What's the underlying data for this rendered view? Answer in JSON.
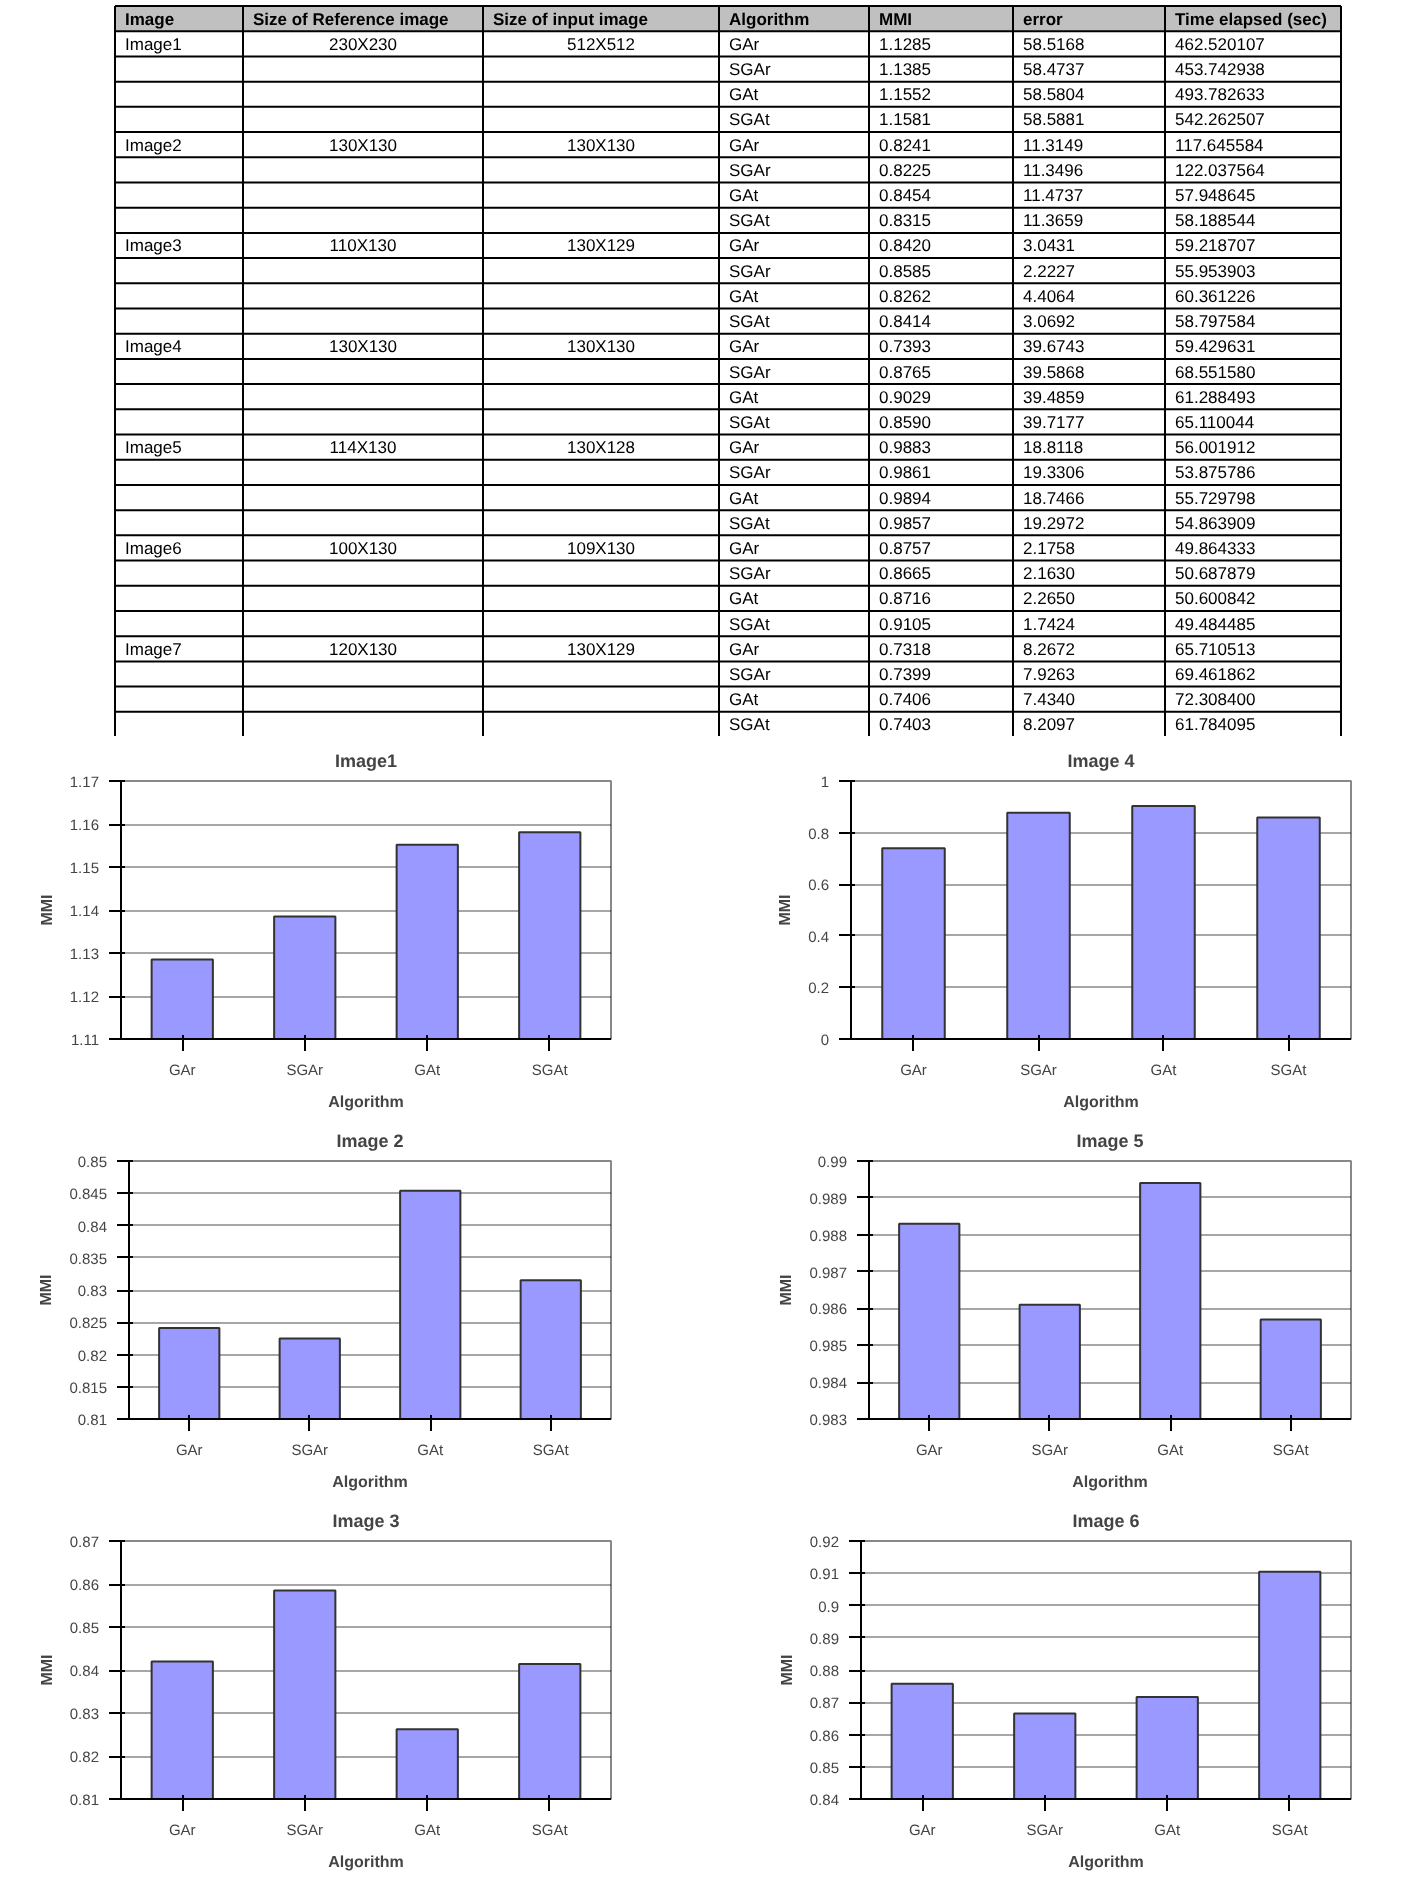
{
  "chart_data": [
    {
      "type": "other",
      "categories": [
        "Image",
        "Size of Reference image",
        "Size of input image",
        "Algorithm",
        "MMI",
        "error",
        "Time elapsed (sec)"
      ],
      "cell_labels": [
        [
          "Image1",
          "230X230",
          "512X512",
          "GAr",
          "1.1285",
          "58.5168",
          "462.520107"
        ],
        [
          null,
          null,
          null,
          "SGAr",
          "1.1385",
          "58.4737",
          "453.742938"
        ],
        [
          null,
          null,
          null,
          "GAt",
          "1.1552",
          "58.5804",
          "493.782633"
        ],
        [
          null,
          null,
          null,
          "SGAt",
          "1.1581",
          "58.5881",
          "542.262507"
        ],
        [
          "Image2",
          "130X130",
          "130X130",
          "GAr",
          "0.8241",
          "11.3149",
          "117.645584"
        ],
        [
          null,
          null,
          null,
          "SGAr",
          "0.8225",
          "11.3496",
          "122.037564"
        ],
        [
          null,
          null,
          null,
          "GAt",
          "0.8454",
          "11.4737",
          "57.948645"
        ],
        [
          null,
          null,
          null,
          "SGAt",
          "0.8315",
          "11.3659",
          "58.188544"
        ],
        [
          "Image3",
          "110X130",
          "130X129",
          "GAr",
          "0.8420",
          "3.0431",
          "59.218707"
        ],
        [
          null,
          null,
          null,
          "SGAr",
          "0.8585",
          "2.2227",
          "55.953903"
        ],
        [
          null,
          null,
          null,
          "GAt",
          "0.8262",
          "4.4064",
          "60.361226"
        ],
        [
          null,
          null,
          null,
          "SGAt",
          "0.8414",
          "3.0692",
          "58.797584"
        ],
        [
          "Image4",
          "130X130",
          "130X130",
          "GAr",
          "0.7393",
          "39.6743",
          "59.429631"
        ],
        [
          null,
          null,
          null,
          "SGAr",
          "0.8765",
          "39.5868",
          "68.551580"
        ],
        [
          null,
          null,
          null,
          "GAt",
          "0.9029",
          "39.4859",
          "61.288493"
        ],
        [
          null,
          null,
          null,
          "SGAt",
          "0.8590",
          "39.7177",
          "65.110044"
        ],
        [
          "Image5",
          "114X130",
          "130X128",
          "GAr",
          "0.9883",
          "18.8118",
          "56.001912"
        ],
        [
          null,
          null,
          null,
          "SGAr",
          "0.9861",
          "19.3306",
          "53.875786"
        ],
        [
          null,
          null,
          null,
          "GAt",
          "0.9894",
          "18.7466",
          "55.729798"
        ],
        [
          null,
          null,
          null,
          "SGAt",
          "0.9857",
          "19.2972",
          "54.863909"
        ],
        [
          "Image6",
          "100X130",
          "109X130",
          "GAr",
          "0.8757",
          "2.1758",
          "49.864333"
        ],
        [
          null,
          null,
          null,
          "SGAr",
          "0.8665",
          "2.1630",
          "50.687879"
        ],
        [
          null,
          null,
          null,
          "GAt",
          "0.8716",
          "2.2650",
          "50.600842"
        ],
        [
          null,
          null,
          null,
          "SGAt",
          "0.9105",
          "1.7424",
          "49.484485"
        ],
        [
          "Image7",
          "120X130",
          "130X129",
          "GAr",
          "0.7318",
          "8.2672",
          "65.710513"
        ],
        [
          null,
          null,
          null,
          "SGAr",
          "0.7399",
          "7.9263",
          "69.461862"
        ],
        [
          null,
          null,
          null,
          "GAt",
          "0.7406",
          "7.4340",
          "72.308400"
        ],
        [
          null,
          null,
          null,
          "SGAt",
          "0.7403",
          "8.2097",
          "61.784095"
        ]
      ]
    },
    {
      "type": "bar",
      "title": "Image1",
      "xlabel": "Algorithm",
      "ylabel": "MMI",
      "categories": [
        "GAr",
        "SGAr",
        "GAt",
        "SGAt"
      ],
      "values": [
        1.1285,
        1.1385,
        1.1552,
        1.1581
      ],
      "color": "#9999ff",
      "ylim": [
        1.11,
        1.17
      ],
      "yticks": [
        1.11,
        1.12,
        1.13,
        1.14,
        1.15,
        1.16,
        1.17
      ],
      "grid": "y"
    },
    {
      "type": "bar",
      "title": "Image 4",
      "xlabel": "Algorithm",
      "ylabel": "MMI",
      "categories": [
        "GAr",
        "SGAr",
        "GAt",
        "SGAt"
      ],
      "values": [
        0.7393,
        0.8765,
        0.9029,
        0.859
      ],
      "color": "#9999ff",
      "ylim": [
        0,
        1
      ],
      "yticks": [
        0,
        0.2,
        0.4,
        0.6,
        0.8,
        1
      ],
      "grid": "y"
    },
    {
      "type": "bar",
      "title": "Image 2",
      "xlabel": "Algorithm",
      "ylabel": "MMI",
      "categories": [
        "GAr",
        "SGAr",
        "GAt",
        "SGAt"
      ],
      "values": [
        0.8241,
        0.8225,
        0.8454,
        0.8315
      ],
      "color": "#9999ff",
      "ylim": [
        0.81,
        0.85
      ],
      "yticks": [
        0.81,
        0.815,
        0.82,
        0.825,
        0.83,
        0.835,
        0.84,
        0.845,
        0.85
      ],
      "grid": "y"
    },
    {
      "type": "bar",
      "title": "Image 5",
      "xlabel": "Algorithm",
      "ylabel": "MMI",
      "categories": [
        "GAr",
        "SGAr",
        "GAt",
        "SGAt"
      ],
      "values": [
        0.9883,
        0.9861,
        0.9894,
        0.9857
      ],
      "color": "#9999ff",
      "ylim": [
        0.983,
        0.99
      ],
      "yticks": [
        0.983,
        0.984,
        0.985,
        0.986,
        0.987,
        0.988,
        0.989,
        0.99
      ],
      "grid": "y"
    },
    {
      "type": "bar",
      "title": "Image 3",
      "xlabel": "Algorithm",
      "ylabel": "MMI",
      "categories": [
        "GAr",
        "SGAr",
        "GAt",
        "SGAt"
      ],
      "values": [
        0.842,
        0.8585,
        0.8262,
        0.8414
      ],
      "color": "#9999ff",
      "ylim": [
        0.81,
        0.87
      ],
      "yticks": [
        0.81,
        0.82,
        0.83,
        0.84,
        0.85,
        0.86,
        0.87
      ],
      "grid": "y"
    },
    {
      "type": "bar",
      "title": "Image 6",
      "xlabel": "Algorithm",
      "ylabel": "MMI",
      "categories": [
        "GAr",
        "SGAr",
        "GAt",
        "SGAt"
      ],
      "values": [
        0.8757,
        0.8665,
        0.8716,
        0.9105
      ],
      "color": "#9999ff",
      "ylim": [
        0.84,
        0.92
      ],
      "yticks": [
        0.84,
        0.85,
        0.86,
        0.87,
        0.88,
        0.89,
        0.9,
        0.91,
        0.92
      ],
      "grid": "y"
    }
  ]
}
